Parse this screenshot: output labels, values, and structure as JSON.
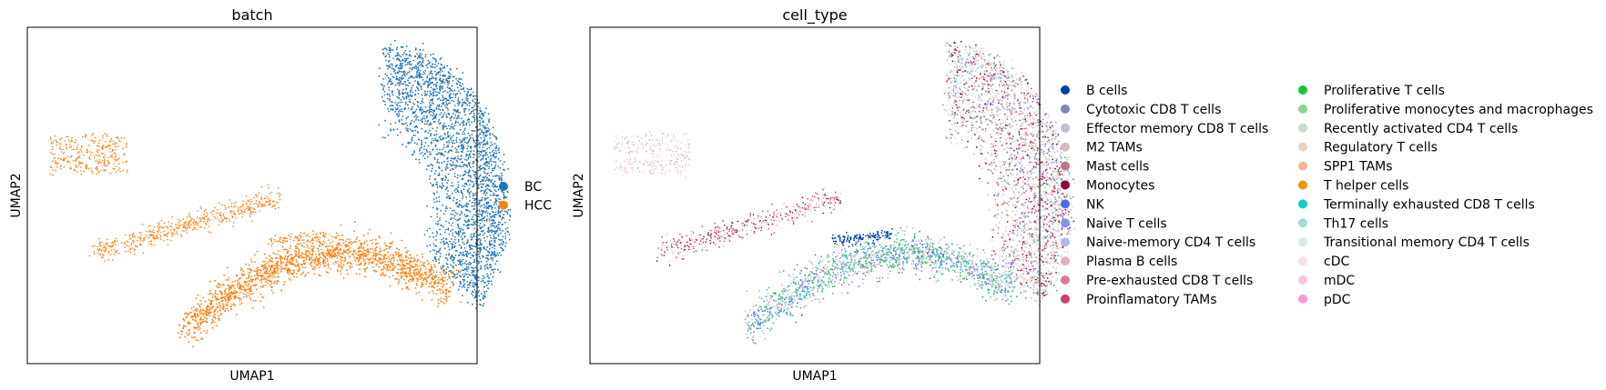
{
  "chart_data": [
    {
      "type": "scatter",
      "title": "batch",
      "xlabel": "UMAP1",
      "ylabel": "UMAP2",
      "grid": false,
      "ticks": false,
      "legend_placement": "right",
      "series": [
        {
          "name": "BC",
          "color": "#1f77b4"
        },
        {
          "name": "HCC",
          "color": "#ff7f0e"
        }
      ]
    },
    {
      "type": "scatter",
      "title": "cell_type",
      "xlabel": "UMAP1",
      "ylabel": "UMAP2",
      "grid": false,
      "ticks": false,
      "legend_placement": "right",
      "series": [
        {
          "name": "B cells",
          "color": "#023fa5"
        },
        {
          "name": "Cytotoxic CD8 T cells",
          "color": "#7d87b9"
        },
        {
          "name": "Effector memory CD8 T cells",
          "color": "#bec1d4"
        },
        {
          "name": "M2 TAMs",
          "color": "#d6bcc0"
        },
        {
          "name": "Mast cells",
          "color": "#bb7784"
        },
        {
          "name": "Monocytes",
          "color": "#8e063b"
        },
        {
          "name": "NK",
          "color": "#4a6fe3"
        },
        {
          "name": "Naive T cells",
          "color": "#8595e1"
        },
        {
          "name": "Naive-memory CD4 T cells",
          "color": "#b5bbe3"
        },
        {
          "name": "Plasma B cells",
          "color": "#e6afb9"
        },
        {
          "name": "Pre-exhausted CD8 T cells",
          "color": "#e07b91"
        },
        {
          "name": "Proinflamatory TAMs",
          "color": "#d33f6a"
        },
        {
          "name": "Proliferative T cells",
          "color": "#11c638"
        },
        {
          "name": "Proliferative monocytes and macrophages",
          "color": "#8dd593"
        },
        {
          "name": "Recently activated CD4 T cells",
          "color": "#c6dec7"
        },
        {
          "name": "Regulatory T cells",
          "color": "#ead3c6"
        },
        {
          "name": "SPP1 TAMs",
          "color": "#f0b98d"
        },
        {
          "name": "T helper cells",
          "color": "#ef9708"
        },
        {
          "name": "Terminally exhausted CD8 T cells",
          "color": "#0fcfc0"
        },
        {
          "name": "Th17 cells",
          "color": "#9cded6"
        },
        {
          "name": "Transitional memory CD4 T cells",
          "color": "#d5eae7"
        },
        {
          "name": "cDC",
          "color": "#f3e1eb"
        },
        {
          "name": "mDC",
          "color": "#f6c4e1"
        },
        {
          "name": "pDC",
          "color": "#f79cd4"
        }
      ]
    }
  ]
}
